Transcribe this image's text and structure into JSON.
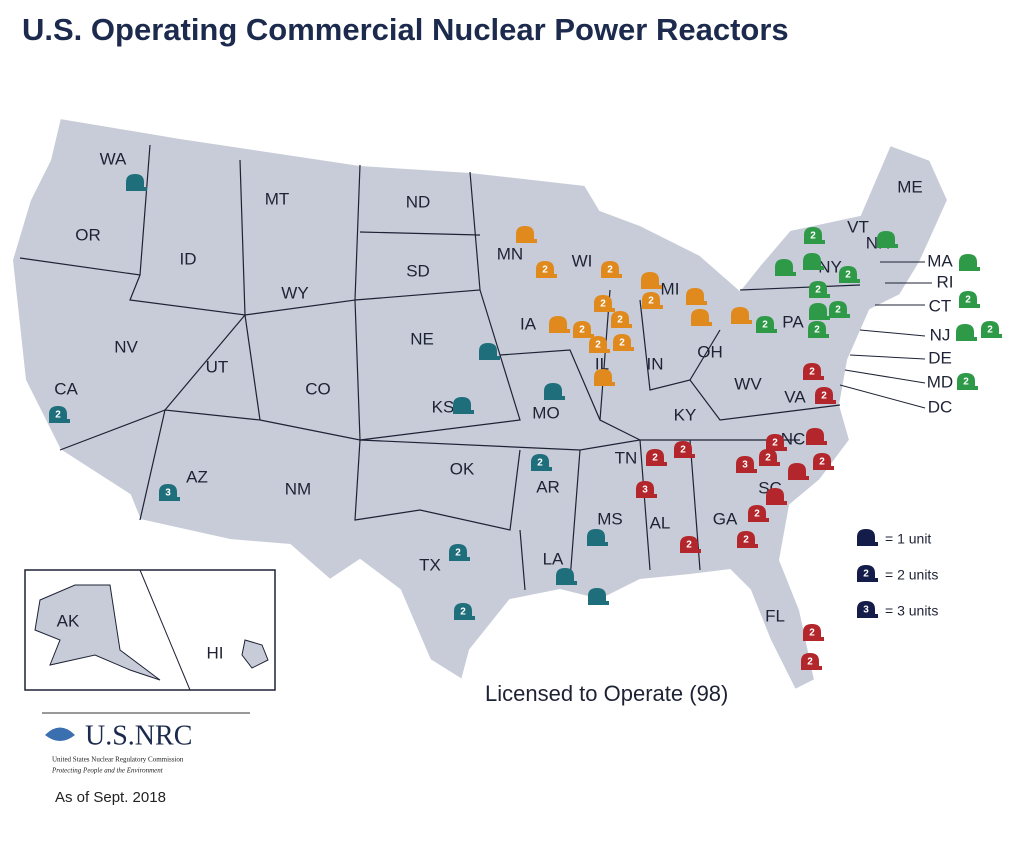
{
  "header": {
    "title": "U.S. Operating Commercial Nuclear Power Reactors"
  },
  "map": {
    "states": [
      "WA",
      "OR",
      "ID",
      "MT",
      "ND",
      "SD",
      "WY",
      "MN",
      "WI",
      "MI",
      "IA",
      "NE",
      "NV",
      "UT",
      "CO",
      "KS",
      "MO",
      "IL",
      "IN",
      "OH",
      "KY",
      "WV",
      "VA",
      "PA",
      "NY",
      "VT",
      "NH",
      "ME",
      "MA",
      "RI",
      "CT",
      "NJ",
      "DE",
      "MD",
      "DC",
      "NC",
      "TN",
      "SC",
      "AR",
      "OK",
      "AZ",
      "NM",
      "CA",
      "TX",
      "LA",
      "MS",
      "AL",
      "GA",
      "FL",
      "AK",
      "HI"
    ],
    "regions": [
      {
        "color": "#1f6e7c",
        "reactors": [
          1,
          2,
          3,
          1,
          1,
          1,
          2,
          2,
          2,
          1,
          1,
          1
        ]
      },
      {
        "color": "#e08a1e",
        "reactors": [
          1,
          2,
          2,
          2,
          1,
          2,
          1,
          1,
          1,
          1,
          2,
          2,
          2,
          2,
          1
        ]
      },
      {
        "color": "#2e9a47",
        "reactors": [
          2,
          1,
          1,
          2,
          1,
          2,
          2,
          1,
          2,
          2,
          1,
          2,
          1,
          2,
          2
        ]
      },
      {
        "color": "#b3262b",
        "reactors": [
          2,
          2,
          2,
          2,
          3,
          2,
          2,
          1,
          3,
          2,
          1,
          2,
          1,
          2,
          2,
          2,
          2
        ]
      }
    ]
  },
  "legend": {
    "color": "#141d4a",
    "items": [
      {
        "units": 1,
        "label": "= 1 unit"
      },
      {
        "units": 2,
        "label": "= 2 units"
      },
      {
        "units": 3,
        "label": "= 3 units"
      }
    ]
  },
  "caption": "Licensed to Operate (98)",
  "logo": {
    "name": "U.S.NRC",
    "agency": "United States Nuclear Regulatory Commission",
    "motto": "Protecting People and the Environment"
  },
  "date": "As of Sept. 2018"
}
